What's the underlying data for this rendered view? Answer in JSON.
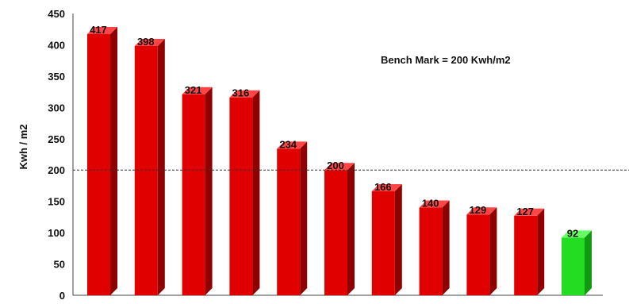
{
  "chart_data": {
    "type": "bar",
    "categories": [
      "",
      "",
      "",
      "",
      "",
      "",
      "",
      "",
      "",
      "",
      ""
    ],
    "values": [
      417,
      398,
      321,
      316,
      234,
      200,
      166,
      140,
      129,
      127,
      92
    ],
    "data_labels": [
      "417",
      "398",
      "321",
      "316",
      "234",
      "200",
      "166",
      "140",
      "129",
      "127",
      "92"
    ],
    "ylabel": "Kwh / m2",
    "ylim": [
      0,
      450
    ],
    "yticks": [
      "0",
      "50",
      "100",
      "150",
      "200",
      "250",
      "300",
      "350",
      "400",
      "450"
    ],
    "reference_line": {
      "value": 200,
      "style": "dashed"
    },
    "annotation": "Bench Mark = 200 Kwh/m2",
    "grid": false,
    "legend": false,
    "colors": {
      "bar": "#e00000",
      "bar_side": "#8f0000",
      "bar_top": "#ff4545",
      "highlight": "#22dd22",
      "highlight_side": "#119911",
      "highlight_top": "#66ff66",
      "highlight_index": 10
    }
  }
}
